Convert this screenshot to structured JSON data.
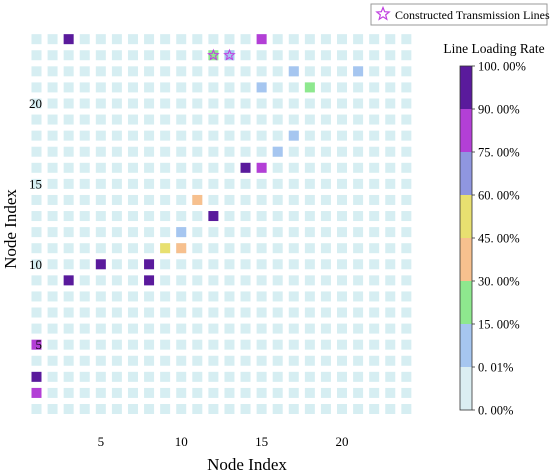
{
  "chart_data": {
    "type": "heatmap",
    "xlabel": "Node Index",
    "ylabel": "Node Index",
    "x_ticks": [
      5,
      10,
      15,
      20
    ],
    "y_ticks": [
      5,
      10,
      15,
      20
    ],
    "n_nodes": 24,
    "empty_color": "#d6eef2",
    "legend": {
      "label": "Constructed Transmission Lines",
      "placement": "top-right"
    },
    "colorbar": {
      "title": "Line Loading Rate",
      "tick_labels": [
        "100. 00%",
        "90. 00%",
        "75. 00%",
        "60. 00%",
        "45. 00%",
        "30. 00%",
        "15. 00%",
        "0. 01%",
        "0. 00%"
      ],
      "bands": [
        {
          "color": "#5a1a9c"
        },
        {
          "color": "#b33fd6"
        },
        {
          "color": "#8f96e0"
        },
        {
          "color": "#e8e070"
        },
        {
          "color": "#f7c08e"
        },
        {
          "color": "#8ee88e"
        },
        {
          "color": "#a6c6f0"
        },
        {
          "color": "#dbeef2"
        }
      ]
    },
    "cells": [
      {
        "x": 3,
        "y": 24,
        "color": "#5a1a9c"
      },
      {
        "x": 15,
        "y": 24,
        "color": "#b33fd6"
      },
      {
        "x": 12,
        "y": 23,
        "color": "#8ee88e",
        "constructed": true
      },
      {
        "x": 13,
        "y": 23,
        "color": "#a6c6f0",
        "constructed": true
      },
      {
        "x": 17,
        "y": 22,
        "color": "#a6c6f0"
      },
      {
        "x": 21,
        "y": 22,
        "color": "#a6c6f0"
      },
      {
        "x": 15,
        "y": 21,
        "color": "#a6c6f0"
      },
      {
        "x": 18,
        "y": 21,
        "color": "#8ee88e"
      },
      {
        "x": 17,
        "y": 18,
        "color": "#a6c6f0"
      },
      {
        "x": 16,
        "y": 17,
        "color": "#a6c6f0"
      },
      {
        "x": 14,
        "y": 16,
        "color": "#5a1a9c"
      },
      {
        "x": 15,
        "y": 16,
        "color": "#b33fd6"
      },
      {
        "x": 11,
        "y": 14,
        "color": "#f7c08e"
      },
      {
        "x": 12,
        "y": 13,
        "color": "#5a1a9c"
      },
      {
        "x": 10,
        "y": 12,
        "color": "#a6c6f0"
      },
      {
        "x": 9,
        "y": 11,
        "color": "#e8e070"
      },
      {
        "x": 10,
        "y": 11,
        "color": "#f7c08e"
      },
      {
        "x": 5,
        "y": 10,
        "color": "#5a1a9c"
      },
      {
        "x": 8,
        "y": 10,
        "color": "#5a1a9c"
      },
      {
        "x": 3,
        "y": 9,
        "color": "#5a1a9c"
      },
      {
        "x": 8,
        "y": 9,
        "color": "#5a1a9c"
      },
      {
        "x": 1,
        "y": 5,
        "color": "#b33fd6"
      },
      {
        "x": 1,
        "y": 3,
        "color": "#5a1a9c"
      },
      {
        "x": 1,
        "y": 2,
        "color": "#b33fd6"
      }
    ]
  }
}
